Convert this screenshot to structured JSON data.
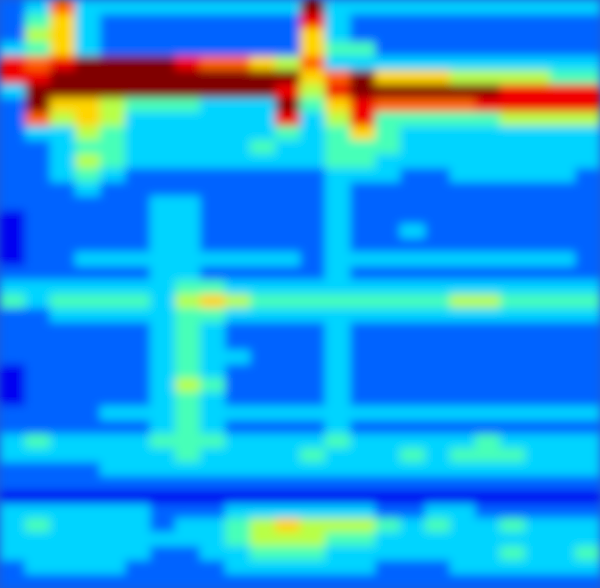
{
  "chart_data": {
    "type": "heatmap",
    "tick_labels": false,
    "zlim": [
      0,
      9
    ],
    "cells": [
      [
        2,
        3,
        7,
        3,
        3,
        3,
        3,
        3,
        3,
        3,
        3,
        3,
        9,
        3,
        3,
        3,
        3,
        3,
        3,
        3,
        3,
        3,
        3,
        3
      ],
      [
        2,
        4,
        6,
        3,
        2,
        2,
        2,
        2,
        2,
        2,
        2,
        2,
        8,
        3,
        2,
        2,
        2,
        2,
        2,
        2,
        2,
        2,
        2,
        2
      ],
      [
        2,
        5,
        6,
        3,
        2,
        2,
        2,
        2,
        2,
        2,
        2,
        2,
        6,
        3,
        2,
        2,
        2,
        2,
        2,
        2,
        2,
        2,
        2,
        2
      ],
      [
        3,
        4,
        6,
        3,
        2,
        2,
        2,
        2,
        2,
        2,
        2,
        2,
        6,
        4,
        4,
        2,
        2,
        2,
        2,
        2,
        2,
        2,
        2,
        2
      ],
      [
        8,
        7,
        8,
        9,
        9,
        9,
        9,
        8,
        7,
        7,
        6,
        5,
        7,
        3,
        3,
        3,
        3,
        3,
        3,
        3,
        3,
        3,
        3,
        3
      ],
      [
        8,
        8,
        9,
        9,
        9,
        9,
        9,
        9,
        9,
        9,
        9,
        9,
        6,
        7,
        9,
        6,
        6,
        6,
        5,
        5,
        5,
        5,
        4,
        4
      ],
      [
        3,
        9,
        9,
        9,
        9,
        9,
        9,
        9,
        9,
        9,
        9,
        8,
        5,
        8,
        9,
        9,
        9,
        9,
        9,
        9,
        8,
        8,
        8,
        8
      ],
      [
        2,
        9,
        6,
        6,
        5,
        4,
        4,
        4,
        3,
        3,
        3,
        9,
        4,
        6,
        8,
        7,
        7,
        7,
        7,
        8,
        8,
        8,
        8,
        8
      ],
      [
        2,
        7,
        5,
        6,
        5,
        3,
        3,
        3,
        3,
        3,
        3,
        8,
        3,
        5,
        8,
        4,
        4,
        4,
        4,
        4,
        5,
        5,
        5,
        5
      ],
      [
        2,
        3,
        3,
        5,
        4,
        3,
        3,
        3,
        3,
        3,
        3,
        4,
        3,
        4,
        6,
        4,
        3,
        3,
        3,
        3,
        3,
        3,
        3,
        3
      ],
      [
        2,
        2,
        3,
        4,
        4,
        3,
        3,
        3,
        3,
        3,
        4,
        3,
        3,
        4,
        4,
        4,
        3,
        3,
        3,
        3,
        3,
        3,
        3,
        3
      ],
      [
        2,
        2,
        3,
        5,
        4,
        3,
        3,
        3,
        3,
        3,
        3,
        3,
        3,
        4,
        4,
        3,
        3,
        3,
        3,
        3,
        3,
        3,
        3,
        3
      ],
      [
        2,
        2,
        3,
        4,
        3,
        2,
        2,
        2,
        2,
        2,
        2,
        2,
        2,
        3,
        3,
        3,
        2,
        2,
        3,
        3,
        3,
        3,
        3,
        2
      ],
      [
        2,
        2,
        2,
        3,
        2,
        2,
        2,
        2,
        2,
        2,
        2,
        2,
        2,
        3,
        2,
        2,
        2,
        2,
        2,
        2,
        2,
        2,
        2,
        2
      ],
      [
        2,
        2,
        2,
        2,
        2,
        2,
        3,
        3,
        2,
        2,
        2,
        2,
        2,
        3,
        2,
        2,
        2,
        2,
        2,
        2,
        2,
        2,
        2,
        2
      ],
      [
        1,
        2,
        2,
        2,
        2,
        2,
        3,
        3,
        2,
        2,
        2,
        2,
        2,
        3,
        2,
        2,
        2,
        2,
        2,
        2,
        2,
        2,
        2,
        2
      ],
      [
        1,
        2,
        2,
        2,
        2,
        2,
        3,
        3,
        2,
        2,
        2,
        2,
        2,
        3,
        2,
        2,
        3,
        2,
        2,
        2,
        2,
        2,
        2,
        2
      ],
      [
        1,
        2,
        2,
        2,
        2,
        2,
        3,
        3,
        2,
        2,
        2,
        2,
        2,
        3,
        2,
        2,
        2,
        2,
        2,
        2,
        2,
        2,
        2,
        2
      ],
      [
        1,
        2,
        2,
        3,
        3,
        3,
        3,
        3,
        3,
        3,
        3,
        3,
        2,
        3,
        3,
        3,
        3,
        3,
        3,
        3,
        3,
        3,
        3,
        2
      ],
      [
        2,
        2,
        2,
        2,
        2,
        2,
        3,
        3,
        2,
        2,
        2,
        2,
        2,
        3,
        2,
        2,
        2,
        2,
        2,
        2,
        2,
        2,
        2,
        2
      ],
      [
        3,
        3,
        3,
        3,
        3,
        3,
        3,
        4,
        4,
        3,
        3,
        3,
        3,
        3,
        3,
        3,
        3,
        3,
        3,
        3,
        3,
        3,
        3,
        3
      ],
      [
        4,
        3,
        4,
        4,
        4,
        4,
        3,
        5,
        6,
        5,
        4,
        4,
        4,
        4,
        4,
        4,
        4,
        4,
        5,
        5,
        4,
        4,
        4,
        4
      ],
      [
        2,
        2,
        3,
        3,
        3,
        3,
        3,
        4,
        4,
        3,
        3,
        3,
        3,
        3,
        3,
        3,
        3,
        3,
        3,
        3,
        3,
        3,
        3,
        3
      ],
      [
        2,
        2,
        2,
        2,
        2,
        2,
        3,
        4,
        3,
        2,
        2,
        2,
        2,
        3,
        2,
        2,
        2,
        2,
        2,
        2,
        2,
        2,
        2,
        2
      ],
      [
        2,
        2,
        2,
        2,
        2,
        2,
        3,
        4,
        3,
        2,
        2,
        2,
        2,
        3,
        2,
        2,
        2,
        2,
        2,
        2,
        2,
        2,
        2,
        2
      ],
      [
        2,
        2,
        2,
        2,
        2,
        2,
        3,
        4,
        3,
        3,
        2,
        2,
        2,
        3,
        2,
        2,
        2,
        2,
        2,
        2,
        2,
        2,
        2,
        2
      ],
      [
        1,
        2,
        2,
        2,
        2,
        2,
        3,
        4,
        3,
        2,
        2,
        2,
        2,
        3,
        2,
        2,
        2,
        2,
        2,
        2,
        2,
        2,
        2,
        2
      ],
      [
        1,
        2,
        2,
        2,
        2,
        2,
        3,
        5,
        4,
        2,
        2,
        2,
        2,
        3,
        2,
        2,
        2,
        2,
        2,
        2,
        2,
        2,
        2,
        2
      ],
      [
        1,
        2,
        2,
        2,
        2,
        2,
        3,
        4,
        3,
        2,
        2,
        2,
        2,
        3,
        2,
        2,
        2,
        2,
        2,
        2,
        2,
        2,
        2,
        2
      ],
      [
        2,
        2,
        2,
        2,
        3,
        3,
        3,
        4,
        3,
        3,
        3,
        3,
        3,
        3,
        3,
        3,
        3,
        3,
        3,
        3,
        3,
        3,
        3,
        3
      ],
      [
        2,
        2,
        2,
        2,
        2,
        2,
        3,
        4,
        3,
        2,
        2,
        2,
        2,
        3,
        2,
        2,
        2,
        2,
        2,
        2,
        2,
        2,
        2,
        2
      ],
      [
        3,
        4,
        3,
        3,
        3,
        3,
        4,
        4,
        4,
        3,
        3,
        3,
        3,
        4,
        3,
        3,
        3,
        3,
        3,
        4,
        3,
        3,
        3,
        3
      ],
      [
        3,
        3,
        3,
        3,
        3,
        3,
        3,
        4,
        3,
        3,
        3,
        3,
        4,
        3,
        3,
        3,
        4,
        3,
        4,
        4,
        4,
        3,
        3,
        3
      ],
      [
        2,
        2,
        2,
        2,
        3,
        3,
        3,
        3,
        3,
        3,
        3,
        3,
        3,
        3,
        3,
        3,
        3,
        3,
        3,
        3,
        3,
        3,
        3,
        3
      ],
      [
        2,
        2,
        2,
        2,
        2,
        2,
        2,
        2,
        2,
        2,
        2,
        2,
        2,
        2,
        2,
        2,
        2,
        2,
        2,
        2,
        2,
        2,
        2,
        2
      ],
      [
        1,
        1,
        1,
        1,
        1,
        1,
        1,
        1,
        1,
        1,
        1,
        1,
        1,
        1,
        1,
        1,
        1,
        1,
        1,
        1,
        1,
        1,
        1,
        1
      ],
      [
        3,
        3,
        3,
        3,
        3,
        3,
        2,
        2,
        2,
        3,
        3,
        3,
        3,
        3,
        3,
        2,
        2,
        3,
        3,
        2,
        2,
        2,
        2,
        2
      ],
      [
        3,
        4,
        3,
        3,
        3,
        3,
        2,
        3,
        3,
        4,
        5,
        6,
        5,
        5,
        5,
        4,
        3,
        4,
        3,
        3,
        4,
        3,
        3,
        3
      ],
      [
        3,
        3,
        3,
        3,
        3,
        3,
        3,
        3,
        3,
        4,
        5,
        5,
        5,
        4,
        4,
        3,
        3,
        3,
        3,
        3,
        3,
        3,
        3,
        3
      ],
      [
        3,
        3,
        3,
        3,
        3,
        3,
        2,
        2,
        3,
        3,
        4,
        4,
        4,
        3,
        3,
        3,
        3,
        3,
        3,
        3,
        4,
        3,
        3,
        4
      ],
      [
        2,
        3,
        3,
        3,
        3,
        2,
        2,
        2,
        2,
        3,
        3,
        3,
        3,
        3,
        3,
        2,
        2,
        2,
        3,
        3,
        3,
        3,
        3,
        3
      ],
      [
        2,
        2,
        2,
        2,
        2,
        2,
        2,
        2,
        2,
        2,
        2,
        2,
        2,
        2,
        2,
        2,
        2,
        2,
        2,
        2,
        2,
        2,
        2,
        2
      ]
    ]
  }
}
